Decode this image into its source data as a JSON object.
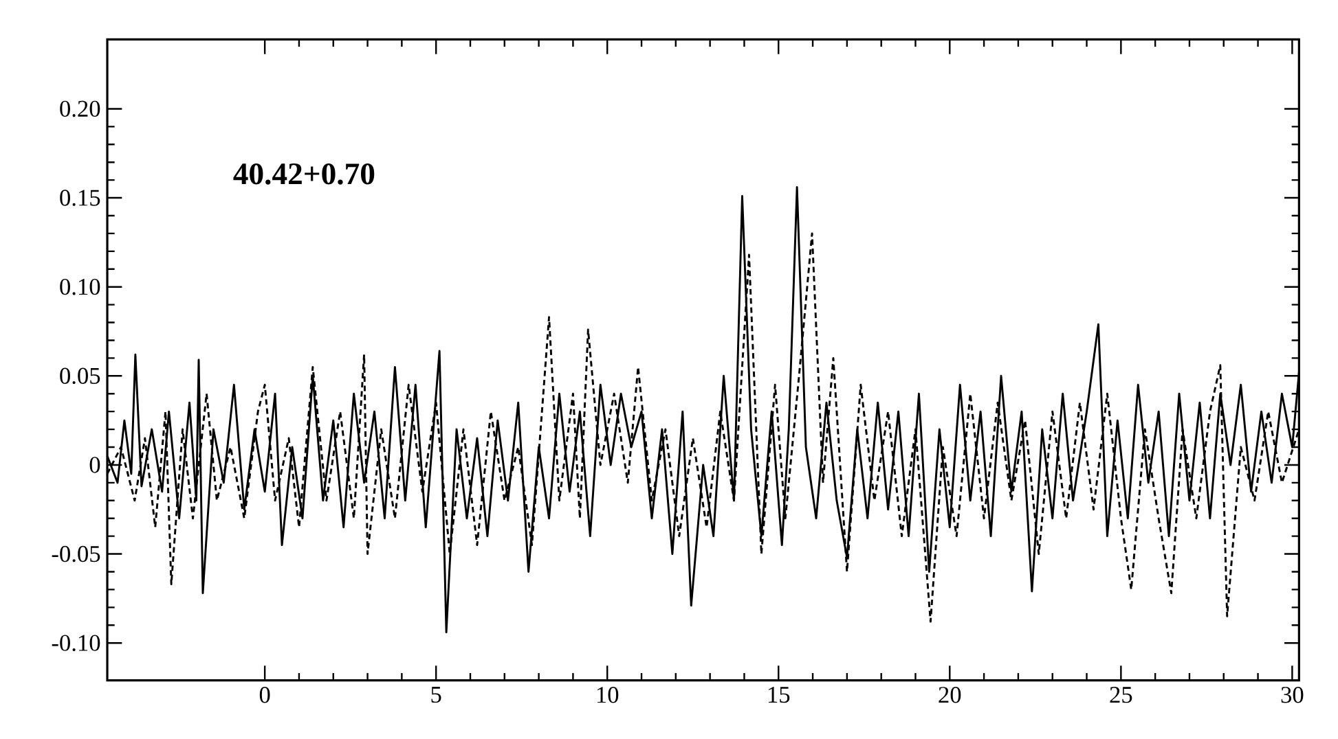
{
  "chart_data": {
    "type": "line",
    "annotations": [
      "40.42+0.70"
    ],
    "xlim": [
      -4.6,
      30.2
    ],
    "ylim": [
      -0.121,
      0.239
    ],
    "xticks": [
      0,
      5,
      10,
      15,
      20,
      25,
      30
    ],
    "yticks": [
      {
        "value": -0.1,
        "label": "-0.10"
      },
      {
        "value": -0.05,
        "label": "-0.05"
      },
      0,
      {
        "value": 0.05,
        "label": "0.05"
      },
      {
        "value": 0.1,
        "label": "0.10"
      },
      {
        "value": 0.15,
        "label": "0.15"
      },
      {
        "value": 0.2,
        "label": "0.20"
      }
    ],
    "grid": false,
    "marker": "none",
    "series": [
      {
        "color": "#000000",
        "line_style": "solid",
        "x": [
          -4.6,
          -4.3,
          -4.1,
          -3.9,
          -3.78,
          -3.6,
          -3.3,
          -3.0,
          -2.8,
          -2.5,
          -2.2,
          -2.0,
          -1.93,
          -1.81,
          -1.5,
          -1.2,
          -0.9,
          -0.6,
          -0.3,
          0.0,
          0.3,
          0.5,
          0.8,
          1.1,
          1.4,
          1.7,
          2.0,
          2.3,
          2.6,
          2.9,
          3.2,
          3.5,
          3.8,
          4.1,
          4.4,
          4.7,
          5.1,
          5.3,
          5.6,
          5.9,
          6.2,
          6.5,
          6.8,
          7.1,
          7.4,
          7.7,
          8.0,
          8.3,
          8.6,
          8.9,
          9.2,
          9.5,
          9.8,
          10.1,
          10.4,
          10.7,
          11.0,
          11.3,
          11.6,
          11.9,
          12.2,
          12.45,
          12.8,
          13.1,
          13.4,
          13.7,
          13.94,
          14.2,
          14.5,
          14.8,
          15.1,
          15.3,
          15.54,
          15.8,
          16.1,
          16.4,
          16.7,
          17.0,
          17.3,
          17.6,
          17.9,
          18.2,
          18.5,
          18.8,
          19.1,
          19.4,
          19.7,
          20.0,
          20.3,
          20.6,
          20.9,
          21.2,
          21.5,
          21.8,
          22.1,
          22.4,
          22.7,
          23.0,
          23.3,
          23.6,
          24.0,
          24.34,
          24.6,
          24.9,
          25.2,
          25.5,
          25.8,
          26.1,
          26.4,
          26.7,
          27.0,
          27.3,
          27.6,
          27.9,
          28.2,
          28.5,
          28.8,
          29.1,
          29.4,
          29.7,
          30.0,
          30.2
        ],
        "values": [
          0.005,
          -0.01,
          0.025,
          -0.005,
          0.062,
          -0.012,
          0.02,
          -0.015,
          0.03,
          -0.03,
          0.035,
          -0.02,
          0.059,
          -0.072,
          0.02,
          -0.01,
          0.045,
          -0.025,
          0.02,
          -0.015,
          0.04,
          -0.045,
          0.01,
          -0.03,
          0.05,
          -0.02,
          0.025,
          -0.035,
          0.04,
          -0.01,
          0.03,
          -0.03,
          0.055,
          -0.02,
          0.045,
          -0.035,
          0.064,
          -0.094,
          0.02,
          -0.03,
          0.015,
          -0.04,
          0.025,
          -0.02,
          0.035,
          -0.06,
          0.01,
          -0.03,
          0.04,
          -0.015,
          0.03,
          -0.04,
          0.045,
          0.0,
          0.04,
          0.01,
          0.03,
          -0.03,
          0.02,
          -0.05,
          0.03,
          -0.079,
          0.0,
          -0.04,
          0.05,
          -0.02,
          0.151,
          0.02,
          -0.04,
          0.03,
          -0.045,
          0.02,
          0.156,
          0.01,
          -0.03,
          0.035,
          -0.02,
          -0.052,
          0.02,
          -0.03,
          0.035,
          -0.025,
          0.03,
          -0.04,
          0.04,
          -0.06,
          0.02,
          -0.035,
          0.045,
          -0.02,
          0.03,
          -0.04,
          0.05,
          -0.015,
          0.03,
          -0.071,
          0.02,
          -0.03,
          0.04,
          -0.02,
          0.03,
          0.079,
          -0.04,
          0.025,
          -0.03,
          0.045,
          -0.01,
          0.03,
          -0.04,
          0.04,
          -0.02,
          0.035,
          -0.03,
          0.04,
          0.0,
          0.045,
          -0.015,
          0.03,
          -0.01,
          0.04,
          0.01,
          0.052
        ]
      },
      {
        "color": "#000000",
        "line_style": "dashed",
        "x": [
          -4.6,
          -4.2,
          -3.8,
          -3.5,
          -3.2,
          -2.9,
          -2.73,
          -2.4,
          -2.1,
          -1.7,
          -1.4,
          -1.0,
          -0.6,
          -0.2,
          0.0,
          0.3,
          0.7,
          1.0,
          1.4,
          1.8,
          2.2,
          2.6,
          2.9,
          3.0,
          3.4,
          3.8,
          4.2,
          4.6,
          5.0,
          5.4,
          5.8,
          6.2,
          6.6,
          7.0,
          7.4,
          7.8,
          8.3,
          8.6,
          9.0,
          9.2,
          9.44,
          9.8,
          10.2,
          10.6,
          10.9,
          11.3,
          11.7,
          12.1,
          12.5,
          12.9,
          13.3,
          13.7,
          14.14,
          14.5,
          14.9,
          15.2,
          15.6,
          15.98,
          16.3,
          16.6,
          17.0,
          17.4,
          17.8,
          18.2,
          18.6,
          19.0,
          19.44,
          19.8,
          20.2,
          20.6,
          21.0,
          21.4,
          21.8,
          22.2,
          22.6,
          23.0,
          23.4,
          23.8,
          24.2,
          24.6,
          25.0,
          25.3,
          25.7,
          26.1,
          26.47,
          26.8,
          27.2,
          27.6,
          27.9,
          28.1,
          28.5,
          28.9,
          29.3,
          29.7,
          30.2
        ],
        "values": [
          -0.005,
          0.01,
          -0.02,
          0.015,
          -0.035,
          0.03,
          -0.067,
          0.02,
          -0.03,
          0.04,
          -0.02,
          0.01,
          -0.03,
          0.03,
          0.045,
          -0.02,
          0.015,
          -0.035,
          0.055,
          -0.02,
          0.03,
          -0.03,
          0.062,
          -0.05,
          0.02,
          -0.03,
          0.045,
          -0.015,
          0.035,
          -0.05,
          0.02,
          -0.045,
          0.03,
          -0.02,
          0.01,
          -0.045,
          0.083,
          -0.02,
          0.04,
          -0.03,
          0.076,
          0.0,
          0.04,
          -0.01,
          0.055,
          -0.02,
          0.02,
          -0.04,
          0.015,
          -0.035,
          0.03,
          -0.02,
          0.118,
          -0.05,
          0.045,
          -0.03,
          0.05,
          0.13,
          -0.01,
          0.06,
          -0.06,
          0.045,
          -0.02,
          0.03,
          -0.04,
          0.02,
          -0.088,
          0.01,
          -0.04,
          0.04,
          -0.03,
          0.035,
          -0.02,
          0.025,
          -0.05,
          0.03,
          -0.03,
          0.035,
          -0.025,
          0.04,
          -0.03,
          -0.07,
          0.02,
          -0.03,
          -0.072,
          0.02,
          -0.03,
          0.03,
          0.056,
          -0.085,
          0.01,
          -0.02,
          0.03,
          -0.01,
          0.02
        ]
      }
    ]
  }
}
